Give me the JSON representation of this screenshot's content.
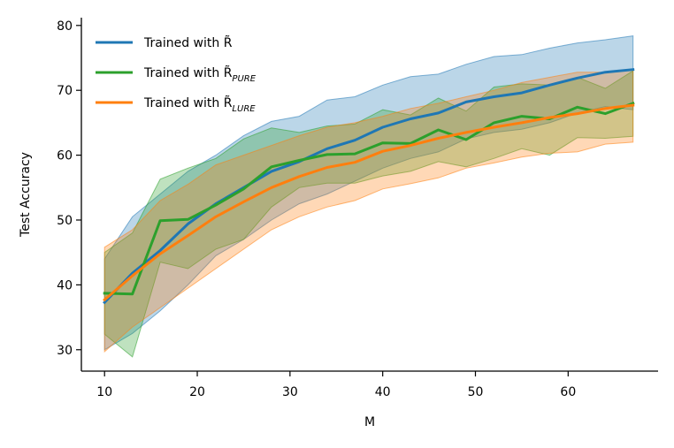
{
  "chart_data": {
    "type": "line",
    "xlabel": "M",
    "ylabel": "Test Accuracy",
    "xlim": [
      7.5,
      69.7
    ],
    "ylim": [
      26.7,
      81.2
    ],
    "xticks": [
      10,
      20,
      30,
      40,
      50,
      60
    ],
    "yticks": [
      30,
      40,
      50,
      60,
      70,
      80
    ],
    "grid": false,
    "legend_position": "upper-left",
    "x": [
      10,
      13,
      16,
      19,
      22,
      25,
      28,
      31,
      34,
      37,
      40,
      43,
      46,
      49,
      52,
      55,
      58,
      61,
      64,
      67
    ],
    "series": [
      {
        "name": "Trained with R̃",
        "legend_base": "Trained with R̃",
        "legend_sub": "",
        "color": "#1f77b4",
        "values": [
          37.3,
          41.8,
          45.3,
          49.4,
          52.5,
          55.0,
          57.5,
          59.0,
          61.0,
          62.3,
          64.3,
          65.6,
          66.5,
          68.2,
          69.0,
          69.6,
          70.8,
          71.9,
          72.8,
          73.2
        ],
        "upper": [
          44.0,
          50.5,
          54.0,
          57.5,
          60.0,
          63.0,
          65.2,
          66.0,
          68.5,
          69.0,
          70.8,
          72.1,
          72.5,
          74.0,
          75.2,
          75.5,
          76.5,
          77.3,
          77.8,
          78.4
        ],
        "lower": [
          30.0,
          32.5,
          36.0,
          40.0,
          44.5,
          47.0,
          50.0,
          52.5,
          54.0,
          56.0,
          58.0,
          59.5,
          60.5,
          62.5,
          63.5,
          64.0,
          65.0,
          66.5,
          67.5,
          67.0
        ]
      },
      {
        "name": "Trained with R̃PURE",
        "legend_base": "Trained with R̃",
        "legend_sub": "PURE",
        "color": "#2ca02c",
        "values": [
          38.7,
          38.6,
          49.9,
          50.1,
          52.3,
          54.8,
          58.2,
          59.2,
          60.1,
          60.2,
          61.9,
          61.8,
          63.9,
          62.4,
          65.0,
          66.0,
          65.6,
          67.4,
          66.4,
          68.0
        ],
        "upper": [
          45.0,
          48.0,
          56.3,
          58.0,
          59.5,
          62.5,
          64.2,
          63.5,
          64.5,
          64.8,
          67.0,
          66.2,
          68.8,
          66.8,
          70.5,
          71.0,
          70.8,
          72.0,
          70.3,
          73.0
        ],
        "lower": [
          32.4,
          28.9,
          43.5,
          42.5,
          45.5,
          47.0,
          52.0,
          55.0,
          55.7,
          55.7,
          56.8,
          57.5,
          59.0,
          58.2,
          59.5,
          61.0,
          60.0,
          62.7,
          62.6,
          62.9
        ]
      },
      {
        "name": "Trained with R̃LURE",
        "legend_base": "Trained with R̃",
        "legend_sub": "LURE",
        "color": "#ff7f0e",
        "values": [
          37.7,
          41.4,
          44.8,
          47.6,
          50.5,
          52.8,
          55.0,
          56.7,
          58.1,
          58.9,
          60.6,
          61.5,
          62.6,
          63.5,
          64.3,
          65.0,
          65.8,
          66.4,
          67.2,
          67.7
        ],
        "upper": [
          45.8,
          48.5,
          53.0,
          55.5,
          58.5,
          60.0,
          61.5,
          63.0,
          64.3,
          65.0,
          66.0,
          67.2,
          68.0,
          69.0,
          70.0,
          71.2,
          72.0,
          72.8,
          72.8,
          73.1
        ],
        "lower": [
          29.7,
          33.5,
          36.5,
          39.5,
          42.5,
          45.5,
          48.5,
          50.5,
          52.0,
          53.0,
          54.8,
          55.6,
          56.5,
          58.0,
          58.8,
          59.7,
          60.3,
          60.5,
          61.7,
          62.0
        ]
      }
    ]
  }
}
